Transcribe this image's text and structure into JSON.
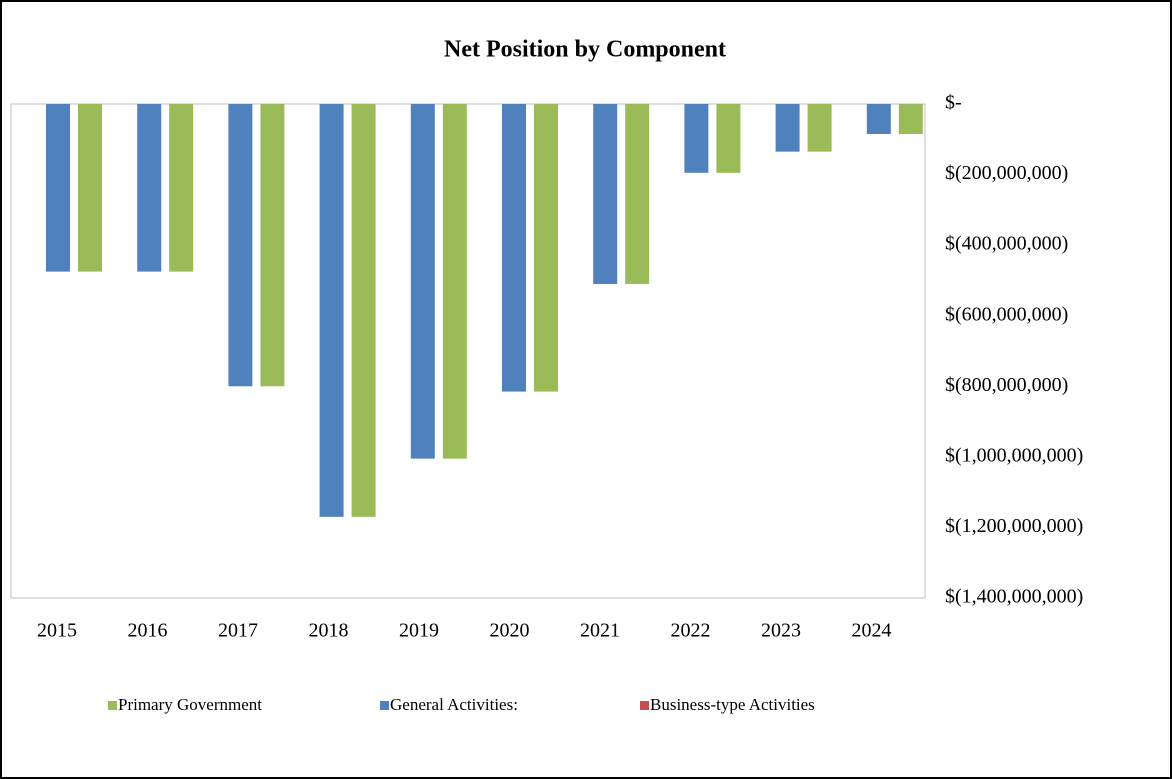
{
  "chart_data": {
    "type": "bar",
    "title": "Net Position by Component",
    "categories": [
      "2015",
      "2016",
      "2017",
      "2018",
      "2019",
      "2020",
      "2021",
      "2022",
      "2023",
      "2024"
    ],
    "series": [
      {
        "name": "Primary Government",
        "color": "#9bbb59",
        "values": [
          -475000000,
          -475000000,
          -800000000,
          -1170000000,
          -1005000000,
          -815000000,
          -510000000,
          -195000000,
          -135000000,
          -85000000
        ]
      },
      {
        "name": "General Activities:",
        "color": "#4f81bd",
        "values": [
          -475000000,
          -475000000,
          -800000000,
          -1170000000,
          -1005000000,
          -815000000,
          -510000000,
          -195000000,
          -135000000,
          -85000000
        ]
      },
      {
        "name": "Business-type Activities",
        "color": "#c0504d",
        "values": [
          0,
          0,
          0,
          0,
          0,
          0,
          0,
          0,
          0,
          0
        ]
      }
    ],
    "ylim": [
      -1400000000,
      0
    ],
    "yticks": [
      {
        "value": 0,
        "label": "$-"
      },
      {
        "value": -200000000,
        "label": "$(200,000,000)"
      },
      {
        "value": -400000000,
        "label": "$(400,000,000)"
      },
      {
        "value": -600000000,
        "label": "$(600,000,000)"
      },
      {
        "value": -800000000,
        "label": "$(800,000,000)"
      },
      {
        "value": -1000000000,
        "label": "$(1,000,000,000)"
      },
      {
        "value": -1200000000,
        "label": "$(1,200,000,000)"
      },
      {
        "value": -1400000000,
        "label": "$(1,400,000,000)"
      }
    ]
  }
}
